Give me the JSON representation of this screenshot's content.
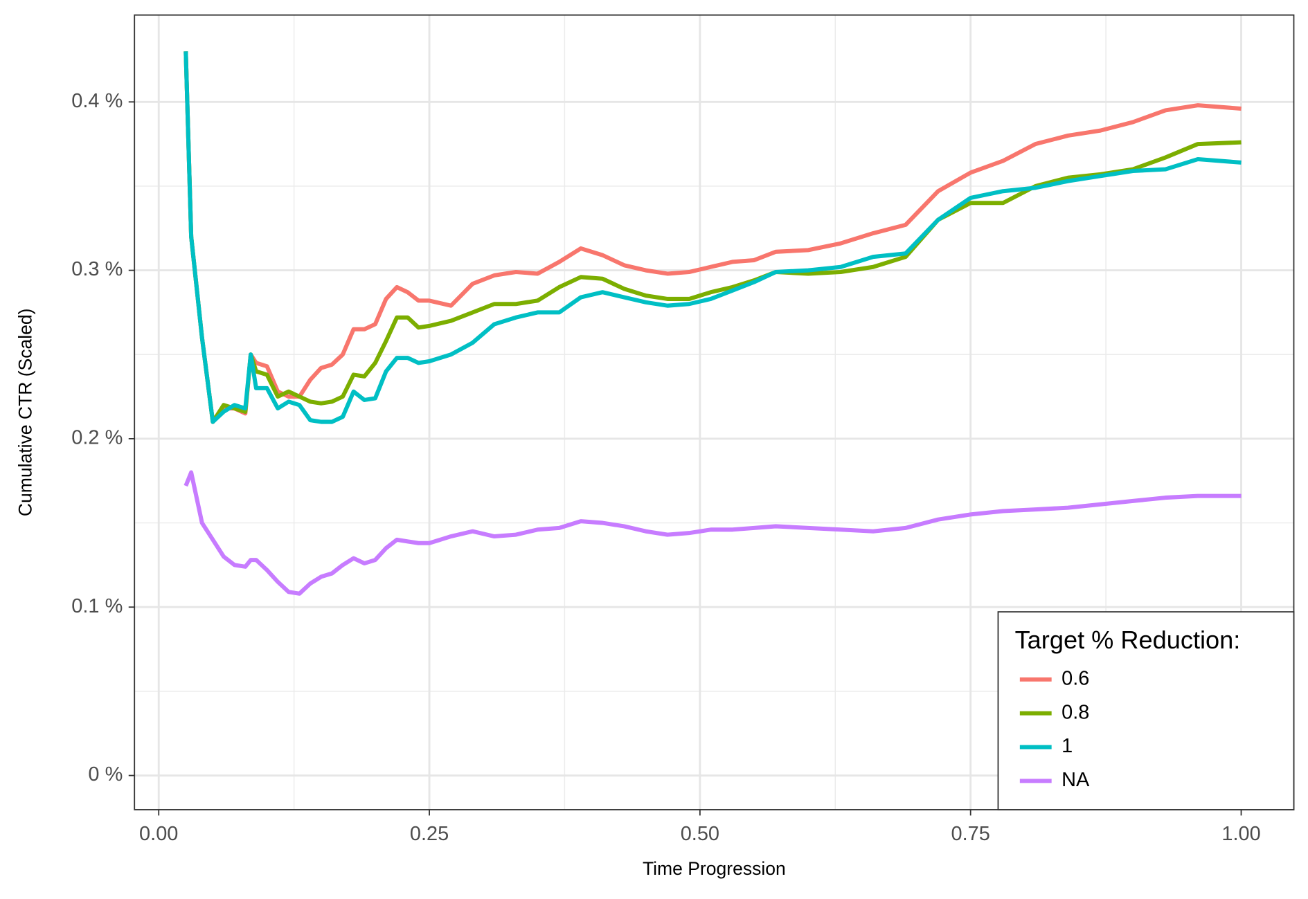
{
  "chart_data": {
    "type": "line",
    "x_label": "Time Progression",
    "y_label": "Cumulative CTR (Scaled)",
    "legend_title": "Target % Reduction:",
    "legend_position": "bottom-right",
    "grid": true,
    "xlim": [
      -0.0224,
      1.0486
    ],
    "ylim": [
      -0.0203,
      0.4516
    ],
    "xticks": [
      {
        "value": 0,
        "label": "0.00"
      },
      {
        "value": 0.25,
        "label": "0.25"
      },
      {
        "value": 0.5,
        "label": "0.50"
      },
      {
        "value": 0.75,
        "label": "0.75"
      },
      {
        "value": 1,
        "label": "1.00"
      }
    ],
    "yticks": [
      {
        "value": 0,
        "label": "0 %"
      },
      {
        "value": 0.1,
        "label": "0.1 %"
      },
      {
        "value": 0.2,
        "label": "0.2 %"
      },
      {
        "value": 0.3,
        "label": "0.3 %"
      },
      {
        "value": 0.4,
        "label": "0.4 %"
      }
    ],
    "x": [
      0.025,
      0.03,
      0.04,
      0.05,
      0.06,
      0.07,
      0.08,
      0.085,
      0.09,
      0.1,
      0.11,
      0.12,
      0.13,
      0.14,
      0.15,
      0.16,
      0.17,
      0.18,
      0.19,
      0.2,
      0.21,
      0.22,
      0.23,
      0.24,
      0.25,
      0.27,
      0.29,
      0.31,
      0.33,
      0.35,
      0.37,
      0.39,
      0.41,
      0.43,
      0.45,
      0.47,
      0.49,
      0.51,
      0.53,
      0.55,
      0.57,
      0.6,
      0.63,
      0.66,
      0.69,
      0.72,
      0.75,
      0.78,
      0.81,
      0.84,
      0.87,
      0.9,
      0.93,
      0.96,
      1.0
    ],
    "series": [
      {
        "name": "0.6",
        "color": "#F8766D",
        "values": [
          0.43,
          0.32,
          0.26,
          0.21,
          0.218,
          0.218,
          0.215,
          0.25,
          0.245,
          0.243,
          0.228,
          0.225,
          0.225,
          0.235,
          0.242,
          0.244,
          0.25,
          0.265,
          0.265,
          0.268,
          0.283,
          0.29,
          0.287,
          0.282,
          0.282,
          0.279,
          0.292,
          0.297,
          0.299,
          0.298,
          0.305,
          0.313,
          0.309,
          0.303,
          0.3,
          0.298,
          0.299,
          0.302,
          0.305,
          0.306,
          0.311,
          0.312,
          0.316,
          0.322,
          0.327,
          0.347,
          0.358,
          0.365,
          0.375,
          0.38,
          0.383,
          0.388,
          0.395,
          0.398,
          0.396
        ]
      },
      {
        "name": "0.8",
        "color": "#7CAE00",
        "values": [
          0.43,
          0.32,
          0.26,
          0.21,
          0.22,
          0.218,
          0.216,
          0.25,
          0.24,
          0.238,
          0.225,
          0.228,
          0.225,
          0.222,
          0.221,
          0.222,
          0.225,
          0.238,
          0.237,
          0.245,
          0.258,
          0.272,
          0.272,
          0.266,
          0.267,
          0.27,
          0.275,
          0.28,
          0.28,
          0.282,
          0.29,
          0.296,
          0.295,
          0.289,
          0.285,
          0.283,
          0.283,
          0.287,
          0.29,
          0.294,
          0.299,
          0.298,
          0.299,
          0.302,
          0.308,
          0.33,
          0.34,
          0.34,
          0.35,
          0.355,
          0.357,
          0.36,
          0.367,
          0.375,
          0.376
        ]
      },
      {
        "name": "1",
        "color": "#00BFC4",
        "values": [
          0.43,
          0.32,
          0.26,
          0.21,
          0.216,
          0.22,
          0.218,
          0.25,
          0.23,
          0.23,
          0.218,
          0.222,
          0.22,
          0.211,
          0.21,
          0.21,
          0.213,
          0.228,
          0.223,
          0.224,
          0.24,
          0.248,
          0.248,
          0.245,
          0.246,
          0.25,
          0.257,
          0.268,
          0.272,
          0.275,
          0.275,
          0.284,
          0.287,
          0.284,
          0.281,
          0.279,
          0.28,
          0.283,
          0.288,
          0.293,
          0.299,
          0.3,
          0.302,
          0.308,
          0.31,
          0.33,
          0.343,
          0.347,
          0.349,
          0.353,
          0.356,
          0.359,
          0.36,
          0.366,
          0.364
        ]
      },
      {
        "name": "NA",
        "color": "#C77CFF",
        "values": [
          0.172,
          0.18,
          0.15,
          0.14,
          0.13,
          0.125,
          0.124,
          0.128,
          0.128,
          0.122,
          0.115,
          0.109,
          0.108,
          0.114,
          0.118,
          0.12,
          0.125,
          0.129,
          0.126,
          0.128,
          0.135,
          0.14,
          0.139,
          0.138,
          0.138,
          0.142,
          0.145,
          0.142,
          0.143,
          0.146,
          0.147,
          0.151,
          0.15,
          0.148,
          0.145,
          0.143,
          0.144,
          0.146,
          0.146,
          0.147,
          0.148,
          0.147,
          0.146,
          0.145,
          0.147,
          0.152,
          0.155,
          0.157,
          0.158,
          0.159,
          0.161,
          0.163,
          0.165,
          0.166,
          0.166
        ]
      }
    ]
  }
}
